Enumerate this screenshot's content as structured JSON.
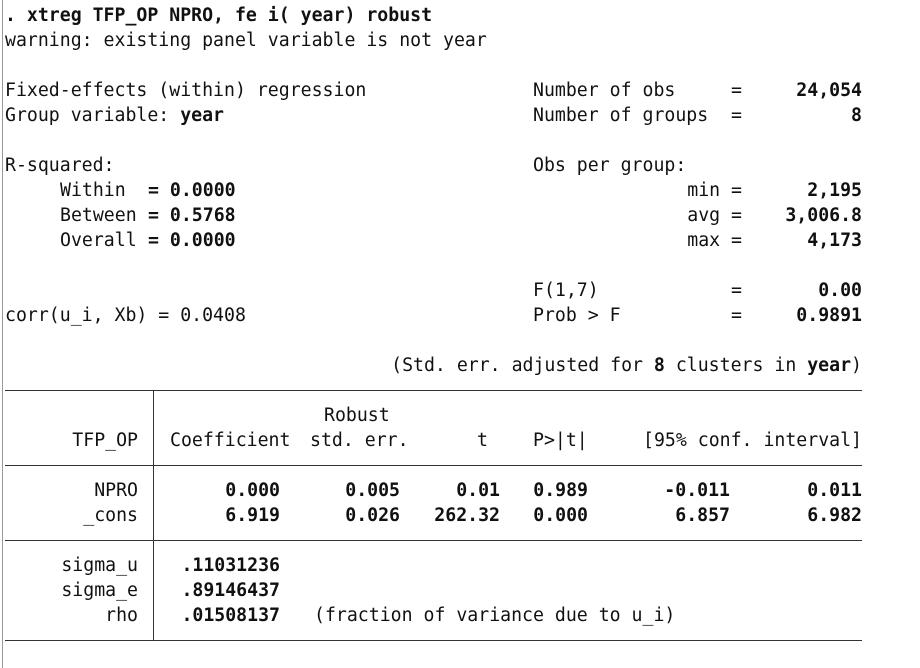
{
  "command": ". xtreg TFP_OP NPRO, fe i( year) robust",
  "warning": "warning: existing panel variable is not year",
  "header": {
    "model": "Fixed-effects (within) regression",
    "group_label": "Group variable: ",
    "group_var": "year",
    "nobs_label": "Number of obs",
    "nobs": "24,054",
    "ngroups_label": "Number of groups",
    "ngroups": "8",
    "eq": "=",
    "rsq_label": "R-squared:",
    "within_label": "Within",
    "within": "= 0.0000",
    "between_label": "Between",
    "between": "= 0.5768",
    "overall_label": "Overall",
    "overall": "= 0.0000",
    "obs_per_group_label": "Obs per group:",
    "min_label": "min =",
    "min": "2,195",
    "avg_label": "avg =",
    "avg": "3,006.8",
    "max_label": "max =",
    "max": "4,173",
    "f_label": "F(1,7)",
    "f": "0.00",
    "probf_label": "Prob > F",
    "probf": "0.9891",
    "corr": "corr(u_i, Xb) = 0.0408",
    "cluster_note_pre": "(Std. err. adjusted for ",
    "cluster_n": "8",
    "cluster_note_mid": " clusters in ",
    "cluster_var": "year",
    "cluster_note_post": ")"
  },
  "table": {
    "depvar": "TFP_OP",
    "col_coef": "Coefficient",
    "col_robust": "Robust",
    "col_se": "std. err.",
    "col_t": "t",
    "col_p": "P>|t|",
    "col_ci": "[95% conf. interval]",
    "rows": [
      {
        "name": "NPRO",
        "coef": "0.000",
        "se": "0.005",
        "t": "0.01",
        "p": "0.989",
        "lo": "-0.011",
        "hi": "0.011"
      },
      {
        "name": "_cons",
        "coef": "6.919",
        "se": "0.026",
        "t": "262.32",
        "p": "0.000",
        "lo": "6.857",
        "hi": "6.982"
      }
    ],
    "sigma_u_label": "sigma_u",
    "sigma_u": ".11031236",
    "sigma_e_label": "sigma_e",
    "sigma_e": ".89146437",
    "rho_label": "rho",
    "rho": ".01508137",
    "rho_note": "(fraction of variance due to u_i)"
  }
}
